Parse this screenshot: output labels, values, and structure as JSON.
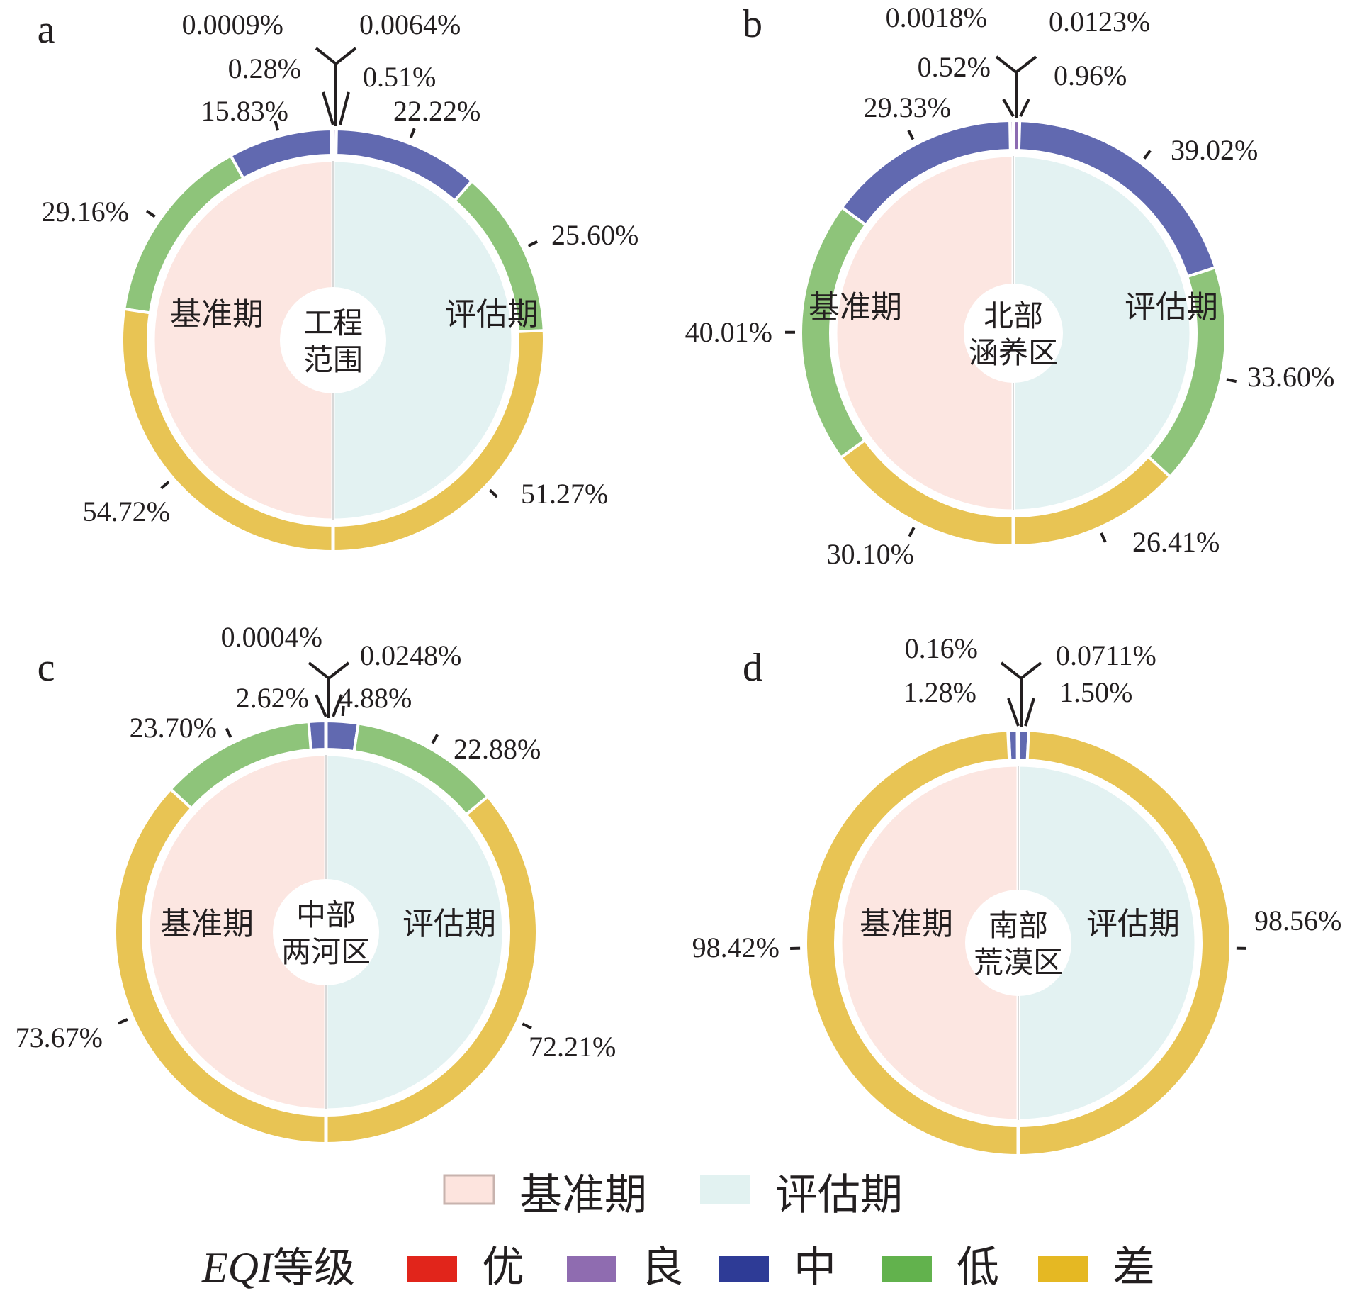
{
  "colors": {
    "优": "#e8301a",
    "良": "#8c6bb1",
    "中": "#6169b0",
    "低": "#8ec47a",
    "差": "#e8c454",
    "baseline_fill": "#fce6e1",
    "eval_fill": "#e3f2f2",
    "legend_baseline": "#fde4de",
    "legend_eval": "#e2f2f1",
    "legend_中": "#2e3b96",
    "legend_低": "#62b24d",
    "legend_差": "#e5b823",
    "legend_良": "#8f6cb0",
    "legend_优": "#e1251b"
  },
  "legend": {
    "period_labels": [
      "基准期",
      "评估期"
    ],
    "eqi_title_italic": "EQI",
    "eqi_title_suffix": "等级",
    "grades": [
      "优",
      "良",
      "中",
      "低",
      "差"
    ]
  },
  "chart_data": [
    {
      "type": "pie",
      "panel": "a",
      "center_label": [
        "工程",
        "范围"
      ],
      "left_label": "基准期",
      "right_label": "评估期",
      "baseline": {
        "categories": [
          "优",
          "良",
          "中",
          "低",
          "差"
        ],
        "values": [
          0.0009,
          0.28,
          15.83,
          29.16,
          54.72
        ],
        "labels": [
          "0.0009%",
          "0.28%",
          "15.83%",
          "29.16%",
          "54.72%"
        ]
      },
      "evaluation": {
        "categories": [
          "优",
          "良",
          "中",
          "低",
          "差"
        ],
        "values": [
          0.0064,
          0.51,
          22.22,
          25.6,
          51.27
        ],
        "labels": [
          "0.0064%",
          "0.51%",
          "22.22%",
          "25.60%",
          "51.27%"
        ]
      }
    },
    {
      "type": "pie",
      "panel": "b",
      "center_label": [
        "北部",
        "涵养区"
      ],
      "left_label": "基准期",
      "right_label": "评估期",
      "baseline": {
        "categories": [
          "优",
          "良",
          "中",
          "低",
          "差"
        ],
        "values": [
          0.0018,
          0.52,
          29.33,
          40.01,
          30.1
        ],
        "labels": [
          "0.0018%",
          "0.52%",
          "29.33%",
          "40.01%",
          "30.10%"
        ]
      },
      "evaluation": {
        "categories": [
          "优",
          "良",
          "中",
          "低",
          "差"
        ],
        "values": [
          0.0123,
          0.96,
          39.02,
          33.6,
          26.41
        ],
        "labels": [
          "0.0123%",
          "0.96%",
          "39.02%",
          "33.60%",
          "26.41%"
        ]
      }
    },
    {
      "type": "pie",
      "panel": "c",
      "center_label": [
        "中部",
        "两河区"
      ],
      "left_label": "基准期",
      "right_label": "评估期",
      "baseline": {
        "categories": [
          "良",
          "中",
          "低",
          "差"
        ],
        "values": [
          0.0004,
          2.62,
          23.7,
          73.67
        ],
        "labels": [
          "0.0004%",
          "2.62%",
          "23.70%",
          "73.67%"
        ]
      },
      "evaluation": {
        "categories": [
          "良",
          "中",
          "低",
          "差"
        ],
        "values": [
          0.0248,
          4.88,
          22.88,
          72.21
        ],
        "labels": [
          "0.0248%",
          "4.88%",
          "22.88%",
          "72.21%"
        ]
      }
    },
    {
      "type": "pie",
      "panel": "d",
      "center_label": [
        "南部",
        "荒漠区"
      ],
      "left_label": "基准期",
      "right_label": "评估期",
      "baseline": {
        "categories": [
          "良",
          "中",
          "低",
          "差"
        ],
        "values": [
          0.16,
          1.28,
          0.14,
          98.42
        ],
        "labels": [
          "0.16%",
          "1.28%",
          "",
          "98.42%"
        ]
      },
      "evaluation": {
        "categories": [
          "良",
          "中",
          "低",
          "差"
        ],
        "values": [
          0.0711,
          1.5,
          0.0,
          98.56
        ],
        "labels": [
          "0.0711%",
          "1.50%",
          "",
          "98.56%"
        ]
      }
    }
  ]
}
